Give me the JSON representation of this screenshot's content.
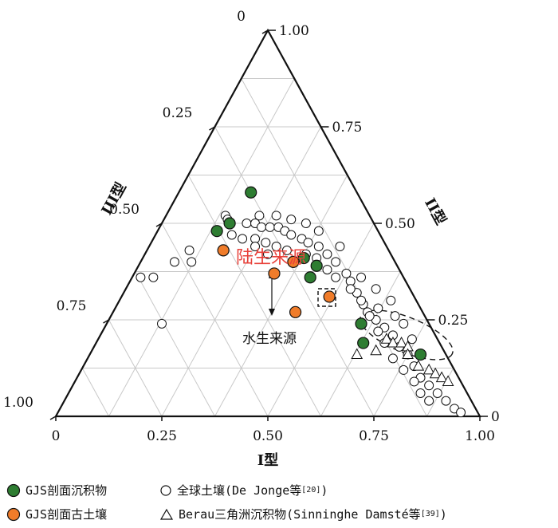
{
  "chart_data": {
    "type": "scatter",
    "subtype": "ternary",
    "axes": {
      "bottom": {
        "label": "I型",
        "ticks": [
          "0",
          "0.25",
          "0.50",
          "0.75",
          "1.00"
        ]
      },
      "right": {
        "label": "II型",
        "ticks": [
          "1.00",
          "0.75",
          "0.50",
          "0.25",
          "0"
        ]
      },
      "left": {
        "label": "III型",
        "ticks": [
          "0",
          "0.25",
          "0.50",
          "0.75",
          "1.00"
        ]
      }
    },
    "grid": true,
    "annotations": {
      "terrestrial": {
        "text": "陆生来源",
        "color": "#e8413a"
      },
      "aquatic": {
        "text": "水生来源",
        "color": "#111111"
      }
    },
    "series": [
      {
        "name": "GJS剖面沉积物",
        "marker": "filled-circle",
        "color": "#2e7d32",
        "points": [
          {
            "I": 0.17,
            "II": 0.58,
            "III": 0.25
          },
          {
            "I": 0.16,
            "II": 0.5,
            "III": 0.34
          },
          {
            "I": 0.14,
            "II": 0.48,
            "III": 0.38
          },
          {
            "I": 0.38,
            "II": 0.41,
            "III": 0.21
          },
          {
            "I": 0.42,
            "II": 0.39,
            "III": 0.19
          },
          {
            "I": 0.42,
            "II": 0.36,
            "III": 0.22
          },
          {
            "I": 0.6,
            "II": 0.24,
            "III": 0.16
          },
          {
            "I": 0.63,
            "II": 0.19,
            "III": 0.18
          },
          {
            "I": 0.78,
            "II": 0.16,
            "III": 0.06
          }
        ]
      },
      {
        "name": "GJS剖面古土壤",
        "marker": "filled-circle",
        "color": "#f07c2a",
        "points": [
          {
            "I": 0.18,
            "II": 0.43,
            "III": 0.39
          },
          {
            "I": 0.36,
            "II": 0.4,
            "III": 0.24
          },
          {
            "I": 0.33,
            "II": 0.37,
            "III": 0.3
          },
          {
            "I": 0.49,
            "II": 0.31,
            "III": 0.2
          },
          {
            "I": 0.43,
            "II": 0.27,
            "III": 0.3
          }
        ]
      },
      {
        "name": "全球土壤(De Jonge等[20])",
        "marker": "open-circle",
        "color": "#ffffff",
        "points": [
          {
            "I": 0.14,
            "II": 0.52,
            "III": 0.34
          },
          {
            "I": 0.15,
            "II": 0.51,
            "III": 0.34
          },
          {
            "I": 0.2,
            "II": 0.5,
            "III": 0.3
          },
          {
            "I": 0.22,
            "II": 0.5,
            "III": 0.28
          },
          {
            "I": 0.24,
            "II": 0.49,
            "III": 0.27
          },
          {
            "I": 0.26,
            "II": 0.49,
            "III": 0.25
          },
          {
            "I": 0.28,
            "II": 0.49,
            "III": 0.23
          },
          {
            "I": 0.3,
            "II": 0.48,
            "III": 0.22
          },
          {
            "I": 0.32,
            "II": 0.47,
            "III": 0.21
          },
          {
            "I": 0.35,
            "II": 0.46,
            "III": 0.19
          },
          {
            "I": 0.37,
            "II": 0.45,
            "III": 0.18
          },
          {
            "I": 0.4,
            "II": 0.44,
            "III": 0.16
          },
          {
            "I": 0.43,
            "II": 0.42,
            "III": 0.15
          },
          {
            "I": 0.46,
            "II": 0.4,
            "III": 0.14
          },
          {
            "I": 0.5,
            "II": 0.37,
            "III": 0.13
          },
          {
            "I": 0.52,
            "II": 0.35,
            "III": 0.13
          },
          {
            "I": 0.55,
            "II": 0.32,
            "III": 0.13
          },
          {
            "I": 0.58,
            "II": 0.29,
            "III": 0.13
          },
          {
            "I": 0.6,
            "II": 0.27,
            "III": 0.13
          },
          {
            "I": 0.63,
            "II": 0.25,
            "III": 0.12
          },
          {
            "I": 0.66,
            "II": 0.23,
            "III": 0.11
          },
          {
            "I": 0.69,
            "II": 0.21,
            "III": 0.1
          },
          {
            "I": 0.72,
            "II": 0.18,
            "III": 0.1
          },
          {
            "I": 0.75,
            "II": 0.16,
            "III": 0.09
          },
          {
            "I": 0.78,
            "II": 0.13,
            "III": 0.09
          },
          {
            "I": 0.81,
            "II": 0.1,
            "III": 0.09
          },
          {
            "I": 0.84,
            "II": 0.08,
            "III": 0.08
          },
          {
            "I": 0.87,
            "II": 0.06,
            "III": 0.07
          },
          {
            "I": 0.9,
            "II": 0.04,
            "III": 0.06
          },
          {
            "I": 0.93,
            "II": 0.02,
            "III": 0.05
          },
          {
            "I": 0.95,
            "II": 0.01,
            "III": 0.04
          },
          {
            "I": 0.18,
            "II": 0.47,
            "III": 0.35
          },
          {
            "I": 0.21,
            "II": 0.46,
            "III": 0.33
          },
          {
            "I": 0.24,
            "II": 0.46,
            "III": 0.3
          },
          {
            "I": 0.27,
            "II": 0.45,
            "III": 0.28
          },
          {
            "I": 0.3,
            "II": 0.44,
            "III": 0.26
          },
          {
            "I": 0.33,
            "II": 0.43,
            "III": 0.24
          },
          {
            "I": 0.38,
            "II": 0.42,
            "III": 0.2
          },
          {
            "I": 0.41,
            "II": 0.41,
            "III": 0.18
          },
          {
            "I": 0.45,
            "II": 0.38,
            "III": 0.17
          },
          {
            "I": 0.48,
            "II": 0.36,
            "III": 0.16
          },
          {
            "I": 0.53,
            "II": 0.33,
            "III": 0.14
          },
          {
            "I": 0.57,
            "II": 0.3,
            "III": 0.13
          },
          {
            "I": 0.61,
            "II": 0.26,
            "III": 0.13
          },
          {
            "I": 0.65,
            "II": 0.22,
            "III": 0.13
          },
          {
            "I": 0.68,
            "II": 0.19,
            "III": 0.13
          },
          {
            "I": 0.72,
            "II": 0.15,
            "III": 0.13
          },
          {
            "I": 0.76,
            "II": 0.12,
            "III": 0.12
          },
          {
            "I": 0.8,
            "II": 0.09,
            "III": 0.11
          },
          {
            "I": 0.83,
            "II": 0.06,
            "III": 0.11
          },
          {
            "I": 0.86,
            "II": 0.04,
            "III": 0.1
          },
          {
            "I": 0.1,
            "II": 0.43,
            "III": 0.47
          },
          {
            "I": 0.08,
            "II": 0.4,
            "III": 0.52
          },
          {
            "I": 0.05,
            "II": 0.36,
            "III": 0.59
          },
          {
            "I": 0.02,
            "II": 0.36,
            "III": 0.62
          },
          {
            "I": 0.12,
            "II": 0.4,
            "III": 0.48
          },
          {
            "I": 0.13,
            "II": 0.24,
            "III": 0.63
          },
          {
            "I": 0.22,
            "II": 0.52,
            "III": 0.26
          },
          {
            "I": 0.26,
            "II": 0.52,
            "III": 0.22
          },
          {
            "I": 0.3,
            "II": 0.51,
            "III": 0.19
          },
          {
            "I": 0.34,
            "II": 0.5,
            "III": 0.16
          },
          {
            "I": 0.38,
            "II": 0.48,
            "III": 0.14
          },
          {
            "I": 0.45,
            "II": 0.44,
            "III": 0.11
          },
          {
            "I": 0.25,
            "II": 0.44,
            "III": 0.31
          },
          {
            "I": 0.29,
            "II": 0.42,
            "III": 0.29
          },
          {
            "I": 0.54,
            "II": 0.36,
            "III": 0.1
          },
          {
            "I": 0.59,
            "II": 0.33,
            "III": 0.08
          },
          {
            "I": 0.64,
            "II": 0.3,
            "III": 0.06
          },
          {
            "I": 0.7,
            "II": 0.24,
            "III": 0.06
          },
          {
            "I": 0.74,
            "II": 0.2,
            "III": 0.06
          },
          {
            "I": 0.62,
            "II": 0.28,
            "III": 0.1
          },
          {
            "I": 0.67,
            "II": 0.26,
            "III": 0.07
          }
        ]
      },
      {
        "name": "Berau三角洲沉积物(Sinninghe Damsté等[39])",
        "marker": "open-triangle",
        "color": "#ffffff",
        "points": [
          {
            "I": 0.68,
            "II": 0.2,
            "III": 0.12
          },
          {
            "I": 0.7,
            "II": 0.19,
            "III": 0.11
          },
          {
            "I": 0.72,
            "II": 0.19,
            "III": 0.09
          },
          {
            "I": 0.74,
            "II": 0.18,
            "III": 0.08
          },
          {
            "I": 0.67,
            "II": 0.17,
            "III": 0.16
          },
          {
            "I": 0.63,
            "II": 0.16,
            "III": 0.21
          },
          {
            "I": 0.75,
            "II": 0.16,
            "III": 0.09
          },
          {
            "I": 0.79,
            "II": 0.13,
            "III": 0.08
          },
          {
            "I": 0.82,
            "II": 0.12,
            "III": 0.06
          },
          {
            "I": 0.84,
            "II": 0.11,
            "III": 0.05
          },
          {
            "I": 0.86,
            "II": 0.1,
            "III": 0.04
          },
          {
            "I": 0.88,
            "II": 0.09,
            "III": 0.03
          }
        ]
      }
    ]
  },
  "legend": {
    "items": [
      {
        "label": "GJS剖面沉积物",
        "sup": ""
      },
      {
        "label": "全球土壤(De Jonge等",
        "sup": "[20]",
        "tail": ")"
      },
      {
        "label": "GJS剖面古土壤",
        "sup": ""
      },
      {
        "label": "Berau三角洲沉积物(Sinninghe Damsté等",
        "sup": "[39]",
        "tail": ")"
      }
    ]
  }
}
